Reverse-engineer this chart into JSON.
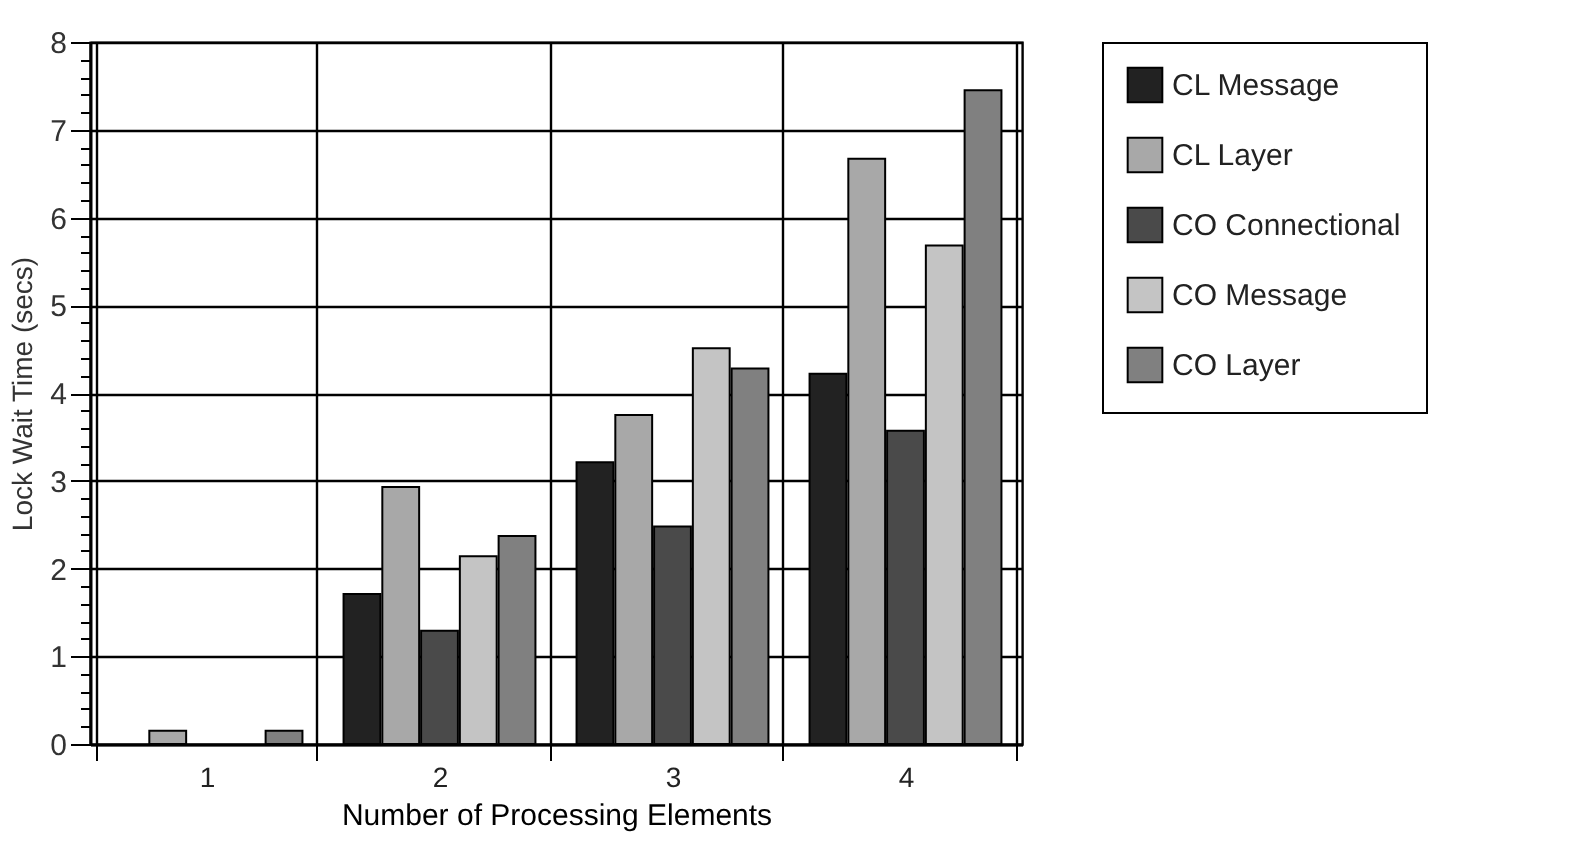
{
  "chart_data": {
    "type": "bar",
    "xlabel": "Number of Processing Elements",
    "ylabel": "Lock Wait Time (secs)",
    "categories": [
      "1",
      "2",
      "3",
      "4"
    ],
    "series": [
      {
        "name": "CL Message",
        "color": "#222222",
        "values": [
          null,
          1.71,
          3.21,
          4.22
        ]
      },
      {
        "name": "CL Layer",
        "color": "#a8a8a8",
        "values": [
          0.15,
          2.93,
          3.75,
          6.67
        ]
      },
      {
        "name": "CO Connectional",
        "color": "#4a4a4a",
        "values": [
          null,
          1.29,
          2.48,
          3.57
        ]
      },
      {
        "name": "CO Message",
        "color": "#c4c4c4",
        "values": [
          null,
          2.14,
          4.51,
          5.68
        ]
      },
      {
        "name": "CO Layer",
        "color": "#808080",
        "values": [
          0.15,
          2.37,
          4.28,
          7.45
        ]
      }
    ],
    "ylim": [
      0,
      8
    ],
    "yticks": [
      0,
      {
        "value": 0.2,
        "label": null
      },
      {
        "value": 0.4,
        "label": null
      },
      {
        "value": 0.6,
        "label": null
      },
      {
        "value": 0.8,
        "label": null
      },
      1,
      {
        "value": 1.2,
        "label": null
      },
      {
        "value": 1.4,
        "label": null
      },
      {
        "value": 1.6,
        "label": null
      },
      {
        "value": 1.8,
        "label": null
      },
      2,
      {
        "value": 2.2,
        "label": null
      },
      {
        "value": 2.4,
        "label": null
      },
      {
        "value": 2.6,
        "label": null
      },
      {
        "value": 2.8,
        "label": null
      },
      3,
      {
        "value": 3.2,
        "label": null
      },
      {
        "value": 3.4,
        "label": null
      },
      {
        "value": 3.6,
        "label": null
      },
      {
        "value": 3.8,
        "label": null
      },
      4,
      {
        "value": 4.2,
        "label": null
      },
      {
        "value": 4.4,
        "label": null
      },
      {
        "value": 4.6,
        "label": null
      },
      {
        "value": 4.8,
        "label": null
      },
      5,
      {
        "value": 5.2,
        "label": null
      },
      {
        "value": 5.4,
        "label": null
      },
      {
        "value": 5.6,
        "label": null
      },
      {
        "value": 5.8,
        "label": null
      },
      6,
      {
        "value": 6.2,
        "label": null
      },
      {
        "value": 6.4,
        "label": null
      },
      {
        "value": 6.6,
        "label": null
      },
      {
        "value": 6.8,
        "label": null
      },
      7,
      {
        "value": 7.2,
        "label": null
      },
      {
        "value": 7.4,
        "label": null
      },
      {
        "value": 7.6,
        "label": null
      },
      {
        "value": 7.8,
        "label": null
      },
      8
    ],
    "grid": true,
    "legend": "top right"
  }
}
